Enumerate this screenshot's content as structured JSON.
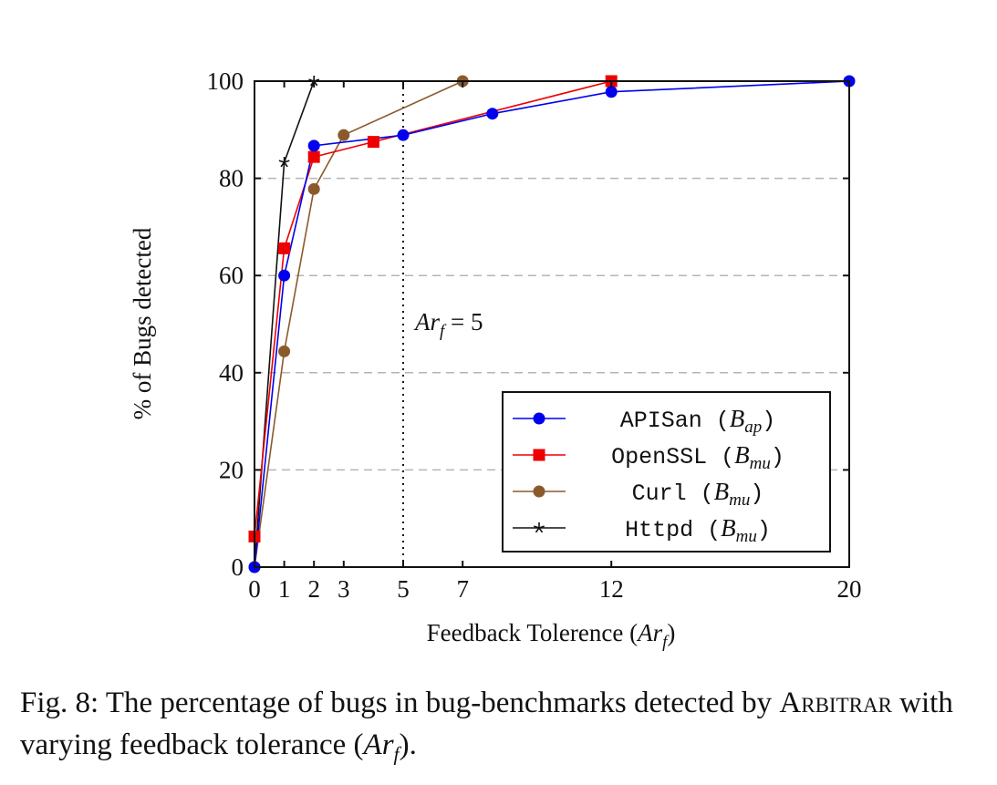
{
  "chart_data": {
    "type": "line",
    "title": "",
    "xlabel": "Feedback Tolerence (Ar_f)",
    "ylabel": "% of Bugs detected",
    "xlim": [
      0,
      20
    ],
    "ylim": [
      0,
      100
    ],
    "xticks": [
      0,
      1,
      2,
      3,
      5,
      7,
      12,
      20
    ],
    "yticks": [
      0,
      20,
      40,
      60,
      80,
      100
    ],
    "grid": "horizontal-dashed",
    "legend_position": "bottom-right",
    "annotation": {
      "text": "Ar_f = 5",
      "x": 5
    },
    "series": [
      {
        "name": "APISan (B_ap)",
        "color": "#0000ee",
        "marker": "circle",
        "x": [
          0,
          1,
          2,
          5,
          8,
          12,
          20
        ],
        "y": [
          0,
          60,
          86.7,
          88.9,
          93.3,
          97.8,
          100
        ]
      },
      {
        "name": "OpenSSL (B_mu)",
        "color": "#ee0000",
        "marker": "square",
        "x": [
          0,
          1,
          2,
          4,
          12
        ],
        "y": [
          6.3,
          65.6,
          84.4,
          87.5,
          100
        ]
      },
      {
        "name": "Curl (B_mu)",
        "color": "#8b5a2b",
        "marker": "circle",
        "x": [
          0,
          1,
          2,
          3,
          7
        ],
        "y": [
          0,
          44.4,
          77.8,
          88.9,
          100
        ]
      },
      {
        "name": "Httpd (B_mu)",
        "color": "#111111",
        "marker": "star",
        "x": [
          0,
          1,
          2
        ],
        "y": [
          0,
          83.3,
          100
        ]
      }
    ]
  },
  "legend": [
    {
      "mono": "APISan",
      "math_base": "B",
      "math_sub": "ap"
    },
    {
      "mono": "OpenSSL",
      "math_base": "B",
      "math_sub": "mu"
    },
    {
      "mono": "Curl",
      "math_base": "B",
      "math_sub": "mu"
    },
    {
      "mono": "Httpd",
      "math_base": "B",
      "math_sub": "mu"
    }
  ],
  "xlabel_parts": {
    "text": "Feedback Tolerence (",
    "math_base": "Ar",
    "math_sub": "f",
    "close": ")"
  },
  "annotation_parts": {
    "math_base": "Ar",
    "math_sub": "f",
    "rest": " = 5"
  },
  "caption": {
    "prefix": "Fig. 8: The percentage of bugs in bug-benchmarks detected by ",
    "name": "Arbitrar",
    "middle": " with varying feedback tolerance (",
    "math_base": "Ar",
    "math_sub": "f",
    "suffix": ")."
  }
}
